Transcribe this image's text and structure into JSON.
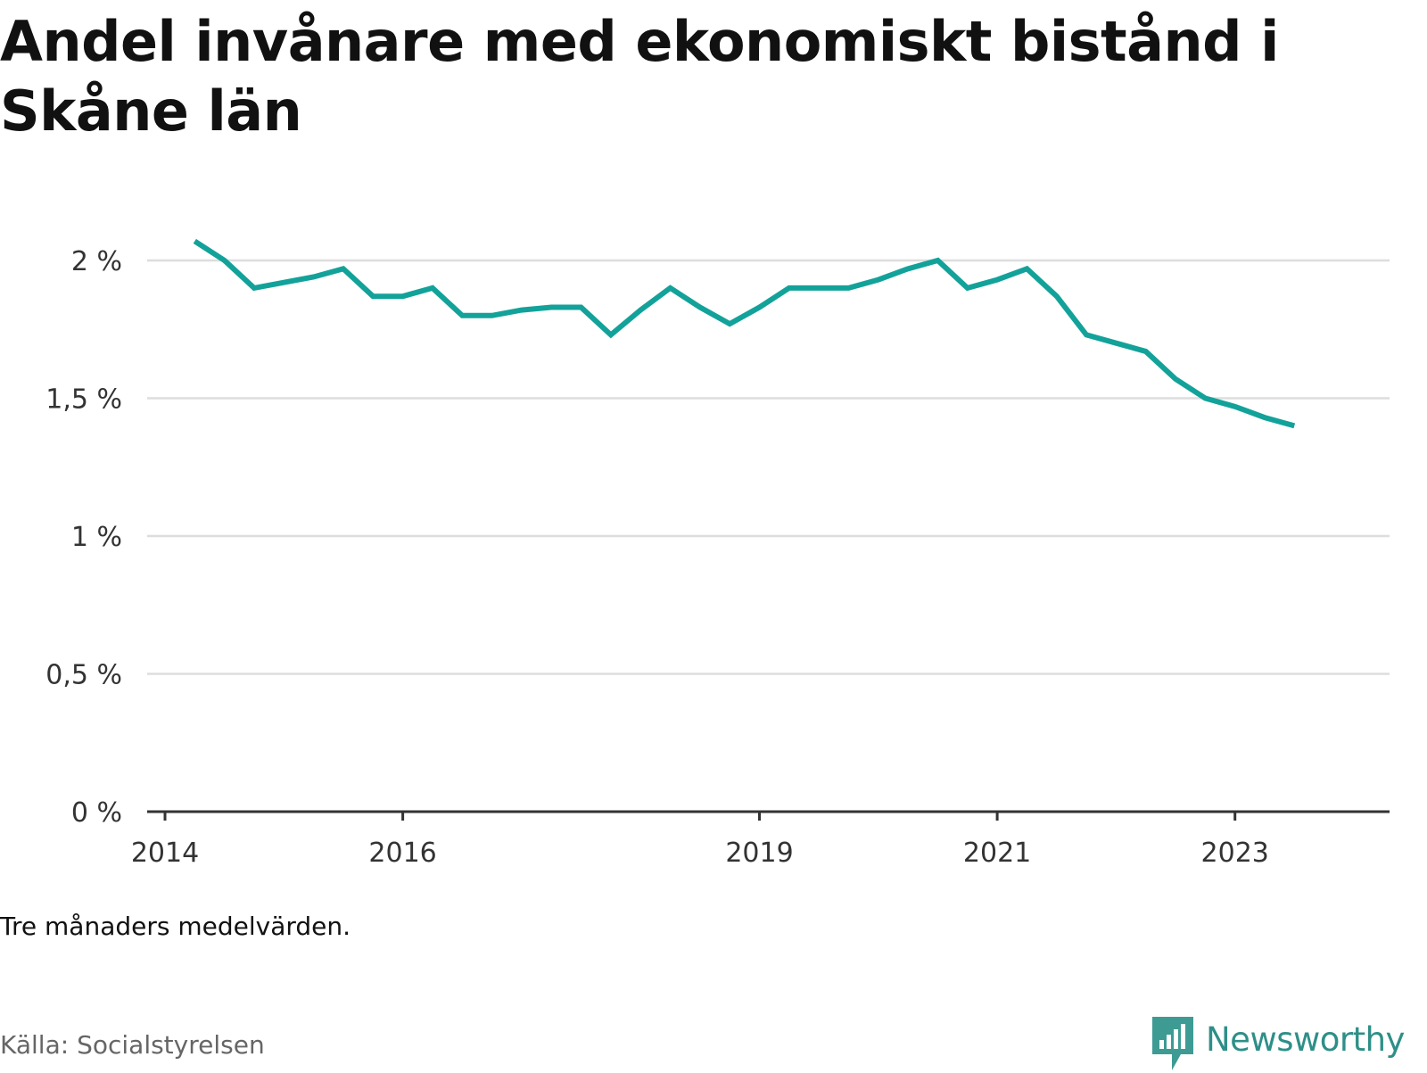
{
  "title": "Andel invånare med ekonomiskt bistånd i Skåne län",
  "note": "Tre månaders medelvärden.",
  "source": "Källa: Socialstyrelsen",
  "logo": {
    "name": "Newsworthy",
    "icon": "newsworthy-bar-chart-icon"
  },
  "colors": {
    "line": "#13a29a",
    "grid": "#dddddd",
    "axis": "#333333"
  },
  "chart_data": {
    "type": "line",
    "title": "Andel invånare med ekonomiskt bistånd i Skåne län",
    "xlabel": "",
    "ylabel": "",
    "x_ticks": [
      "2014",
      "2016",
      "2019",
      "2021",
      "2023"
    ],
    "x_tick_values": [
      "2014-01",
      "2016-01",
      "2019-01",
      "2021-01",
      "2023-01"
    ],
    "y_ticks": [
      0,
      0.5,
      1,
      1.5,
      2
    ],
    "y_tick_labels": [
      "0 %",
      "0,5 %",
      "1 %",
      "1,5 %",
      "2 %"
    ],
    "ylim": [
      0,
      2.1
    ],
    "xlim": [
      "2014-01",
      "2024-01"
    ],
    "grid": true,
    "series": [
      {
        "values": [
          {
            "x": "2014-04",
            "y": 2.07
          },
          {
            "x": "2014-07",
            "y": 2.0
          },
          {
            "x": "2014-10",
            "y": 1.9
          },
          {
            "x": "2015-01",
            "y": 1.92
          },
          {
            "x": "2015-04",
            "y": 1.94
          },
          {
            "x": "2015-07",
            "y": 1.97
          },
          {
            "x": "2015-10",
            "y": 1.87
          },
          {
            "x": "2016-01",
            "y": 1.87
          },
          {
            "x": "2016-04",
            "y": 1.9
          },
          {
            "x": "2016-07",
            "y": 1.8
          },
          {
            "x": "2016-10",
            "y": 1.8
          },
          {
            "x": "2017-01",
            "y": 1.82
          },
          {
            "x": "2017-04",
            "y": 1.83
          },
          {
            "x": "2017-07",
            "y": 1.83
          },
          {
            "x": "2017-10",
            "y": 1.73
          },
          {
            "x": "2018-01",
            "y": 1.82
          },
          {
            "x": "2018-04",
            "y": 1.9
          },
          {
            "x": "2018-07",
            "y": 1.83
          },
          {
            "x": "2018-10",
            "y": 1.77
          },
          {
            "x": "2019-01",
            "y": 1.83
          },
          {
            "x": "2019-04",
            "y": 1.9
          },
          {
            "x": "2019-07",
            "y": 1.9
          },
          {
            "x": "2019-10",
            "y": 1.9
          },
          {
            "x": "2020-01",
            "y": 1.93
          },
          {
            "x": "2020-04",
            "y": 1.97
          },
          {
            "x": "2020-07",
            "y": 2.0
          },
          {
            "x": "2020-10",
            "y": 1.9
          },
          {
            "x": "2021-01",
            "y": 1.93
          },
          {
            "x": "2021-04",
            "y": 1.97
          },
          {
            "x": "2021-07",
            "y": 1.87
          },
          {
            "x": "2021-10",
            "y": 1.73
          },
          {
            "x": "2022-01",
            "y": 1.7
          },
          {
            "x": "2022-04",
            "y": 1.67
          },
          {
            "x": "2022-07",
            "y": 1.57
          },
          {
            "x": "2022-10",
            "y": 1.5
          },
          {
            "x": "2023-01",
            "y": 1.47
          },
          {
            "x": "2023-04",
            "y": 1.43
          },
          {
            "x": "2023-07",
            "y": 1.4
          }
        ]
      }
    ]
  }
}
